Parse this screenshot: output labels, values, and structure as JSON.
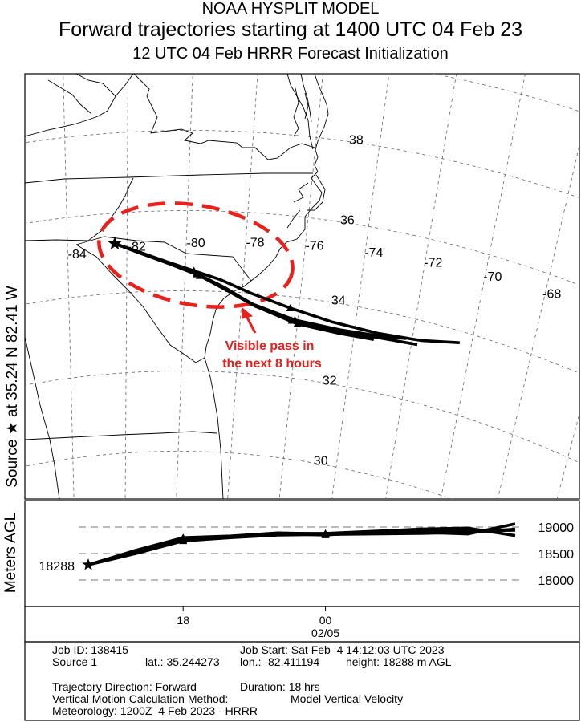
{
  "titles": {
    "line1": "NOAA HYSPLIT MODEL",
    "line2": "Forward trajectories starting at 1400 UTC 04 Feb 23",
    "line3": "12 UTC 04 Feb    HRRR  Forecast Initialization"
  },
  "side_label": "Source ★  at   35.24 N   82.41 W",
  "map": {
    "lat_labels": [
      {
        "text": "38",
        "lat": 38
      },
      {
        "text": "36",
        "lat": 36
      },
      {
        "text": "34",
        "lat": 34
      },
      {
        "text": "32",
        "lat": 32
      },
      {
        "text": "30",
        "lat": 30
      }
    ],
    "lon_labels": [
      {
        "text": "-84",
        "lon": -84
      },
      {
        "text": "-82",
        "lon": -82
      },
      {
        "text": "-80",
        "lon": -80
      },
      {
        "text": "-78",
        "lon": -78
      },
      {
        "text": "-76",
        "lon": -76
      },
      {
        "text": "-74",
        "lon": -74
      },
      {
        "text": "-72",
        "lon": -72
      },
      {
        "text": "-70",
        "lon": -70
      },
      {
        "text": "-68",
        "lon": -68
      }
    ],
    "source": {
      "lat": 35.24,
      "lon": -82.41
    },
    "annotation": {
      "line1": "Visible pass in",
      "line2": "the next 8 hours",
      "color": "#e8211c"
    },
    "trajectories": [
      [
        [
          -82.41,
          35.24
        ],
        [
          -81.6,
          35.0
        ],
        [
          -80.6,
          34.72
        ],
        [
          -79.7,
          34.5
        ],
        [
          -78.8,
          34.3
        ],
        [
          -77.7,
          34.0
        ],
        [
          -76.3,
          33.72
        ],
        [
          -74.8,
          33.52
        ],
        [
          -73.2,
          33.45
        ],
        [
          -71.7,
          33.52
        ],
        [
          -70.4,
          33.72
        ]
      ],
      [
        [
          -82.41,
          35.24
        ],
        [
          -81.5,
          34.97
        ],
        [
          -80.5,
          34.68
        ],
        [
          -79.6,
          34.43
        ],
        [
          -78.6,
          34.1
        ],
        [
          -77.6,
          33.72
        ],
        [
          -76.2,
          33.42
        ],
        [
          -74.6,
          33.33
        ],
        [
          -73.1,
          33.35
        ],
        [
          -71.8,
          33.4
        ]
      ],
      [
        [
          -82.41,
          35.24
        ],
        [
          -81.5,
          34.95
        ],
        [
          -80.5,
          34.66
        ],
        [
          -79.5,
          34.38
        ],
        [
          -78.5,
          34.02
        ],
        [
          -77.5,
          33.68
        ],
        [
          -76.0,
          33.35
        ],
        [
          -74.5,
          33.27
        ],
        [
          -73.3,
          33.28
        ]
      ],
      [
        [
          -82.41,
          35.24
        ],
        [
          -81.6,
          34.98
        ],
        [
          -80.6,
          34.7
        ],
        [
          -79.6,
          34.42
        ],
        [
          -78.6,
          34.08
        ],
        [
          -77.6,
          33.73
        ],
        [
          -76.1,
          33.44
        ],
        [
          -74.5,
          33.36
        ],
        [
          -73.0,
          33.4
        ],
        [
          -72.2,
          33.48
        ]
      ]
    ]
  },
  "height_panel": {
    "ylabel": "Meters AGL",
    "y_ticks": [
      {
        "text": "19000",
        "v": 19000
      },
      {
        "text": "18500",
        "v": 18500
      },
      {
        "text": "18000",
        "v": 18000
      }
    ],
    "start_label": "18288",
    "start_height": 18288,
    "time_hours": [
      0,
      2,
      4,
      6,
      8,
      10,
      12,
      14,
      16,
      18
    ],
    "series": [
      [
        18288,
        18560,
        18800,
        18830,
        18890,
        18870,
        18900,
        18900,
        18870,
        19060
      ],
      [
        18288,
        18520,
        18760,
        18810,
        18870,
        18850,
        18910,
        18940,
        18930,
        18940
      ],
      [
        18288,
        18500,
        18740,
        18800,
        18850,
        18860,
        18870,
        18880,
        18900,
        18960
      ],
      [
        18288,
        18540,
        18780,
        18820,
        18880,
        18880,
        18920,
        18960,
        18980,
        18840
      ]
    ]
  },
  "time_axis": {
    "ticks": [
      {
        "text": "18",
        "hour": 4
      },
      {
        "text": "00",
        "hour": 10
      }
    ],
    "date": "02/05"
  },
  "job_info": {
    "job_id": "Job ID: 138415",
    "job_start": "Job Start: Sat Feb  4 14:12:03 UTC 2023",
    "source": "Source 1",
    "lat": "lat.: 35.244273",
    "lon": "lon.: -82.411194",
    "height": "height: 18288 m AGL",
    "direction": "Trajectory Direction: Forward",
    "duration": "Duration: 18 hrs",
    "vertical_label": "Vertical Motion Calculation Method:",
    "vertical_value": "Model Vertical Velocity",
    "meteorology": "Meteorology: 1200Z  4 Feb 2023 - HRRR"
  }
}
